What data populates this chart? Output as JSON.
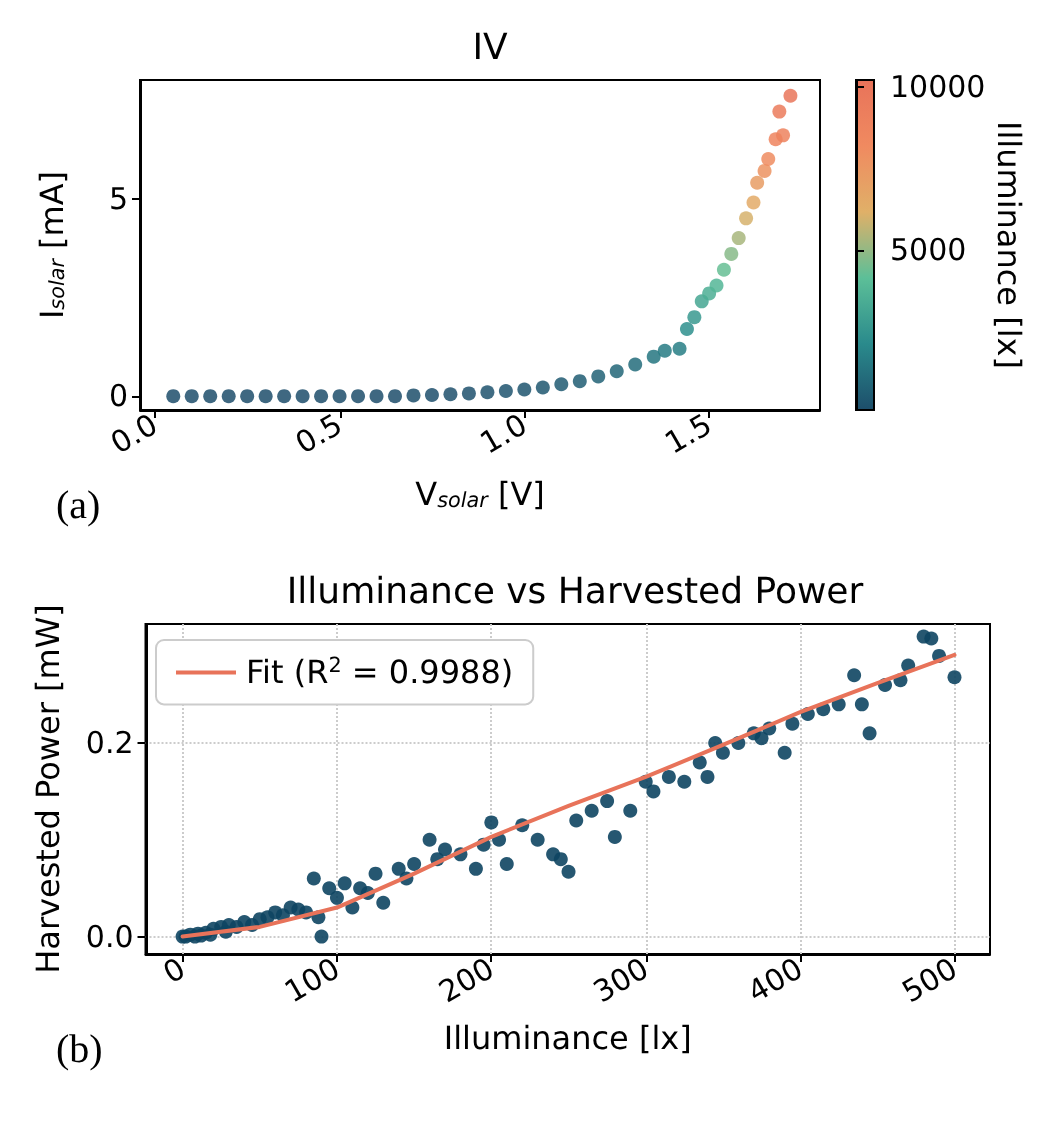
{
  "chart_data": [
    {
      "type": "scatter",
      "title": "IV",
      "xlabel": "V$_{solar}$ [V]",
      "ylabel": "I$_{solar}$ [mA]",
      "clabel": "Illuminance [lx]",
      "annotations": [
        "(a)"
      ],
      "xlim": [
        -0.04,
        1.8
      ],
      "xticks": [
        {
          "value": 0,
          "label": "0.0"
        },
        0.5,
        {
          "value": 1,
          "label": "1.0"
        },
        1.5
      ],
      "ylim": [
        -0.35,
        8.0
      ],
      "yticks": [
        0,
        5
      ],
      "clim": [
        100,
        10200
      ],
      "cticks": [
        5000,
        10000
      ],
      "grid": false,
      "marker": "circle",
      "series": [
        {
          "x": [
            0.05,
            0.1,
            0.15,
            0.2,
            0.25,
            0.3,
            0.35,
            0.4,
            0.45,
            0.5,
            0.55,
            0.6,
            0.65,
            0.7,
            0.75,
            0.8,
            0.85,
            0.9,
            0.95,
            1.0,
            1.05,
            1.1,
            1.15,
            1.2,
            1.25,
            1.3,
            1.35,
            1.38,
            1.42,
            1.44,
            1.46,
            1.48,
            1.5,
            1.52,
            1.54,
            1.56,
            1.58,
            1.6,
            1.62,
            1.63,
            1.65,
            1.66,
            1.68,
            1.7,
            1.69,
            1.72
          ],
          "values": [
            0,
            0,
            0,
            0,
            0,
            0,
            0,
            0,
            0,
            0,
            0,
            0,
            0,
            0.02,
            0.03,
            0.05,
            0.07,
            0.1,
            0.13,
            0.17,
            0.22,
            0.3,
            0.38,
            0.5,
            0.63,
            0.8,
            1.0,
            1.15,
            1.2,
            1.7,
            2.0,
            2.4,
            2.6,
            2.8,
            3.2,
            3.6,
            4.0,
            4.5,
            4.9,
            5.4,
            5.7,
            6.0,
            6.5,
            6.6,
            7.2,
            7.6
          ],
          "cvalues": [
            100,
            100,
            100,
            100,
            100,
            100,
            100,
            100,
            100,
            100,
            100,
            100,
            110,
            120,
            150,
            180,
            200,
            250,
            300,
            350,
            400,
            500,
            600,
            750,
            900,
            1100,
            1400,
            1600,
            1700,
            2300,
            2700,
            3200,
            3500,
            3800,
            4300,
            4800,
            5300,
            6000,
            6500,
            7200,
            7700,
            8100,
            8700,
            8900,
            9500,
            10000
          ]
        }
      ]
    },
    {
      "type": "scatter",
      "title": "Illuminance vs Harvested Power",
      "xlabel": "Illuminance [lx]",
      "ylabel": "Harvested Power [mW]",
      "annotations": [
        "(b)"
      ],
      "xlim": [
        -24,
        523
      ],
      "xticks": [
        0,
        100,
        200,
        300,
        400,
        500
      ],
      "ylim": [
        -0.018,
        0.323
      ],
      "yticks": [
        {
          "value": 0,
          "label": "0.0"
        },
        0.2
      ],
      "grid": true,
      "legend": "top left",
      "marker": "circle",
      "series": [
        {
          "color": "#0e4562",
          "x": [
            0,
            2,
            5,
            8,
            10,
            12,
            15,
            18,
            20,
            25,
            28,
            30,
            35,
            40,
            45,
            50,
            55,
            60,
            65,
            70,
            75,
            80,
            85,
            88,
            90,
            95,
            100,
            105,
            110,
            115,
            120,
            125,
            130,
            140,
            145,
            150,
            160,
            165,
            170,
            180,
            190,
            195,
            200,
            205,
            210,
            220,
            230,
            240,
            245,
            250,
            255,
            265,
            275,
            280,
            290,
            300,
            305,
            315,
            325,
            335,
            340,
            345,
            350,
            360,
            370,
            375,
            380,
            390,
            395,
            405,
            415,
            425,
            435,
            440,
            445,
            455,
            465,
            470,
            480,
            485,
            490,
            500
          ],
          "values": [
            0,
            0,
            0.002,
            0,
            0.003,
            0.001,
            0.004,
            0.002,
            0.008,
            0.01,
            0.005,
            0.012,
            0.01,
            0.015,
            0.012,
            0.018,
            0.02,
            0.025,
            0.022,
            0.03,
            0.028,
            0.025,
            0.06,
            0.02,
            0,
            0.05,
            0.04,
            0.055,
            0.03,
            0.05,
            0.045,
            0.065,
            0.035,
            0.07,
            0.06,
            0.075,
            0.1,
            0.08,
            0.09,
            0.085,
            0.07,
            0.095,
            0.118,
            0.1,
            0.075,
            0.115,
            0.1,
            0.085,
            0.08,
            0.067,
            0.12,
            0.13,
            0.14,
            0.103,
            0.13,
            0.16,
            0.15,
            0.165,
            0.16,
            0.18,
            0.165,
            0.2,
            0.19,
            0.2,
            0.21,
            0.205,
            0.215,
            0.19,
            0.22,
            0.23,
            0.235,
            0.24,
            0.27,
            0.24,
            0.21,
            0.26,
            0.265,
            0.28,
            0.31,
            0.308,
            0.29,
            0.268
          ]
        },
        {
          "name": "Fit (R$^{2}$ = 0.9988)",
          "type": "line",
          "color": "#e8735a",
          "marker": "none",
          "x": [
            0,
            50,
            100,
            150,
            200,
            250,
            300,
            350,
            400,
            450,
            500
          ],
          "values": [
            0,
            0.01,
            0.03,
            0.065,
            0.103,
            0.135,
            0.165,
            0.198,
            0.232,
            0.262,
            0.291
          ]
        }
      ]
    }
  ]
}
